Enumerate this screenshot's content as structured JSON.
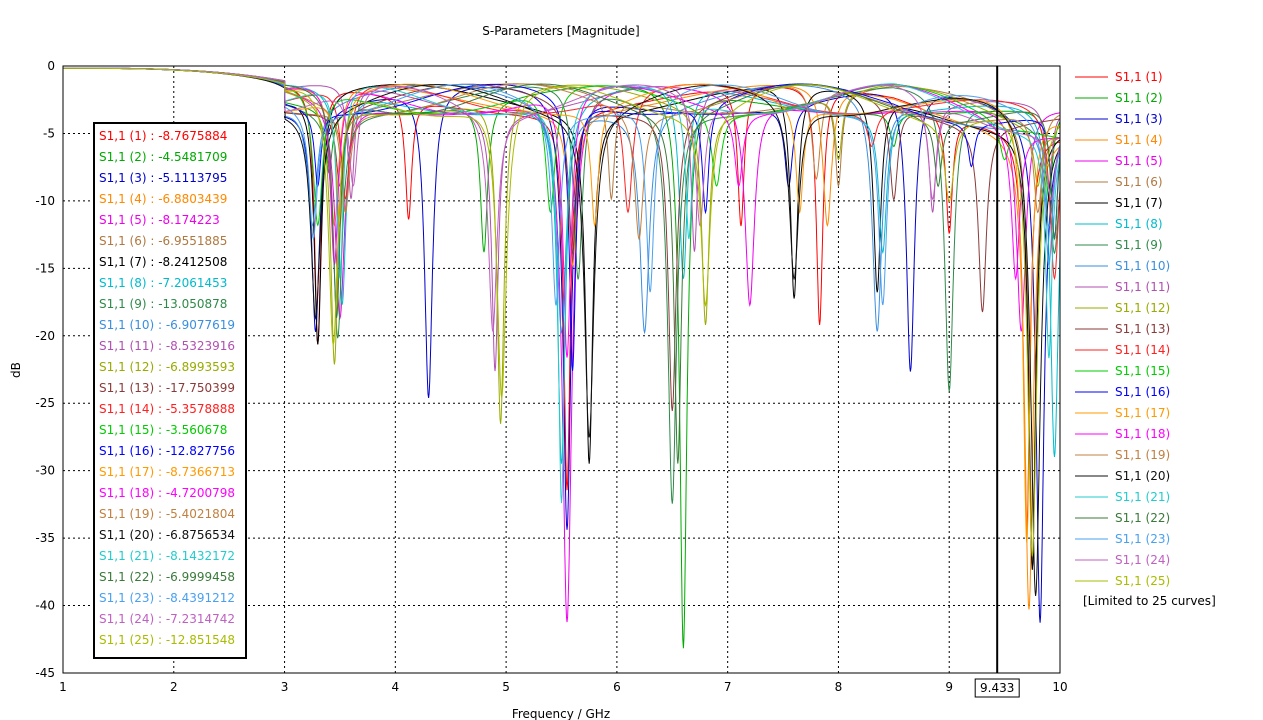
{
  "chart_data": {
    "type": "line",
    "title": "S-Parameters [Magnitude]",
    "xlabel": "Frequency / GHz",
    "ylabel": "dB",
    "xlim": [
      1,
      10
    ],
    "ylim": [
      -45,
      0
    ],
    "x_ticks": [
      "1",
      "2",
      "3",
      "4",
      "5",
      "6",
      "7",
      "8",
      "9",
      "10"
    ],
    "y_ticks": [
      "0",
      "-5",
      "-10",
      "-15",
      "-20",
      "-25",
      "-30",
      "-35",
      "-40",
      "-45"
    ],
    "grid": true,
    "legend_position": "right",
    "legend_note": "[Limited to 25 curves]",
    "marker": {
      "x": 9.433,
      "label": "9.433"
    },
    "series": [
      {
        "name": "S1,1 (1)",
        "readout": "-8.7675884",
        "color": "#ff0000",
        "dips": [
          [
            3.3,
            -21
          ],
          [
            4.12,
            -11.5
          ],
          [
            5.55,
            -32
          ],
          [
            7.12,
            -12
          ],
          [
            7.83,
            -19.5
          ],
          [
            9.0,
            -12.5
          ],
          [
            9.7,
            -35
          ]
        ]
      },
      {
        "name": "S1,1 (2)",
        "readout": "-4.5481709",
        "color": "#00aa00",
        "dips": [
          [
            3.4,
            -8
          ],
          [
            4.8,
            -14
          ],
          [
            6.6,
            -44
          ],
          [
            8.5,
            -6
          ],
          [
            9.9,
            -10
          ]
        ]
      },
      {
        "name": "S1,1 (3)",
        "readout": "-5.1113795",
        "color": "#0000cc",
        "dips": [
          [
            3.28,
            -20
          ],
          [
            4.3,
            -25
          ],
          [
            5.55,
            -35
          ],
          [
            7.55,
            -9
          ],
          [
            8.65,
            -23
          ],
          [
            9.82,
            -42
          ]
        ]
      },
      {
        "name": "S1,1 (4)",
        "readout": "-6.8803439",
        "color": "#ff8800",
        "dips": [
          [
            3.45,
            -12
          ],
          [
            5.6,
            -15
          ],
          [
            7.9,
            -12
          ],
          [
            9.72,
            -41
          ]
        ]
      },
      {
        "name": "S1,1 (5)",
        "readout": "-8.174223",
        "color": "#ee00ee",
        "dips": [
          [
            3.5,
            -19
          ],
          [
            5.55,
            -42
          ],
          [
            7.2,
            -18
          ],
          [
            9.65,
            -20
          ]
        ]
      },
      {
        "name": "S1,1 (6)",
        "readout": "-6.9551885",
        "color": "#b07840",
        "dips": [
          [
            3.55,
            -11
          ],
          [
            5.95,
            -10
          ],
          [
            8.0,
            -9
          ],
          [
            9.75,
            -38
          ]
        ]
      },
      {
        "name": "S1,1 (7)",
        "readout": "-8.2412508",
        "color": "#000000",
        "dips": [
          [
            3.3,
            -21
          ],
          [
            5.75,
            -30
          ],
          [
            7.6,
            -17.5
          ],
          [
            8.35,
            -17
          ],
          [
            9.75,
            -38
          ]
        ]
      },
      {
        "name": "S1,1 (8)",
        "readout": "-7.2061453",
        "color": "#00bbcc",
        "dips": [
          [
            3.52,
            -18
          ],
          [
            5.5,
            -30
          ],
          [
            6.6,
            -16
          ],
          [
            8.4,
            -14
          ],
          [
            9.95,
            -29.5
          ]
        ]
      },
      {
        "name": "S1,1 (9)",
        "readout": "-13.050878",
        "color": "#2f8a4a",
        "dips": [
          [
            3.48,
            -20.5
          ],
          [
            5.65,
            -16
          ],
          [
            6.5,
            -33
          ],
          [
            9.0,
            -24.5
          ],
          [
            9.95,
            -14
          ]
        ]
      },
      {
        "name": "S1,1 (10)",
        "readout": "-6.9077619",
        "color": "#3a8ee0",
        "dips": [
          [
            3.25,
            -12
          ],
          [
            5.5,
            -20
          ],
          [
            6.25,
            -20
          ],
          [
            8.35,
            -20
          ],
          [
            9.9,
            -12
          ]
        ]
      },
      {
        "name": "S1,1 (11)",
        "readout": "-8.5323916",
        "color": "#b050b0",
        "dips": [
          [
            3.6,
            -10
          ],
          [
            4.9,
            -23
          ],
          [
            6.7,
            -14
          ],
          [
            8.85,
            -11
          ],
          [
            9.9,
            -9
          ]
        ]
      },
      {
        "name": "S1,1 (12)",
        "readout": "-6.8993593",
        "color": "#99aa00",
        "dips": [
          [
            3.45,
            -22.5
          ],
          [
            4.95,
            -27
          ],
          [
            6.8,
            -19.5
          ],
          [
            8.0,
            -7
          ],
          [
            9.8,
            -9
          ]
        ]
      },
      {
        "name": "S1,1 (13)",
        "readout": "-17.750399",
        "color": "#8b3a3a",
        "dips": [
          [
            3.5,
            -9
          ],
          [
            5.6,
            -14
          ],
          [
            6.5,
            -26
          ],
          [
            8.5,
            -10
          ],
          [
            9.3,
            -18.5
          ]
        ]
      },
      {
        "name": "S1,1 (14)",
        "readout": "-5.3578888",
        "color": "#ff2020",
        "dips": [
          [
            3.55,
            -10
          ],
          [
            6.1,
            -11
          ],
          [
            8.3,
            -6
          ],
          [
            9.95,
            -16
          ]
        ]
      },
      {
        "name": "S1,1 (15)",
        "readout": "-3.560678",
        "color": "#00cc00",
        "dips": [
          [
            3.3,
            -12
          ],
          [
            5.4,
            -11
          ],
          [
            6.9,
            -9
          ],
          [
            9.5,
            -7
          ]
        ]
      },
      {
        "name": "S1,1 (16)",
        "readout": "-12.827756",
        "color": "#0000ff",
        "dips": [
          [
            3.3,
            -9
          ],
          [
            5.6,
            -23
          ],
          [
            6.8,
            -11
          ],
          [
            9.2,
            -7.5
          ],
          [
            9.95,
            -13
          ]
        ]
      },
      {
        "name": "S1,1 (17)",
        "readout": "-8.7366713",
        "color": "#ff9900",
        "dips": [
          [
            3.5,
            -12
          ],
          [
            5.8,
            -12
          ],
          [
            7.65,
            -11
          ],
          [
            9.7,
            -36
          ]
        ]
      },
      {
        "name": "S1,1 (18)",
        "readout": "-4.7200798",
        "color": "#ff00ff",
        "dips": [
          [
            3.45,
            -15
          ],
          [
            5.55,
            -22
          ],
          [
            7.1,
            -9
          ],
          [
            9.6,
            -16
          ]
        ]
      },
      {
        "name": "S1,1 (19)",
        "readout": "-5.4021804",
        "color": "#c08040",
        "dips": [
          [
            3.55,
            -11
          ],
          [
            6.2,
            -13
          ],
          [
            7.8,
            -8.5
          ],
          [
            9.8,
            -11
          ]
        ]
      },
      {
        "name": "S1,1 (20)",
        "readout": "-6.8756534",
        "color": "#111111",
        "dips": [
          [
            3.28,
            -19
          ],
          [
            5.75,
            -28
          ],
          [
            7.6,
            -16
          ],
          [
            9.78,
            -40
          ]
        ]
      },
      {
        "name": "S1,1 (21)",
        "readout": "-8.1432172",
        "color": "#22cccc",
        "dips": [
          [
            3.5,
            -16
          ],
          [
            5.5,
            -33
          ],
          [
            6.65,
            -13
          ],
          [
            9.9,
            -22
          ]
        ]
      },
      {
        "name": "S1,1 (22)",
        "readout": "-6.9999458",
        "color": "#3a7a3a",
        "dips": [
          [
            3.47,
            -19
          ],
          [
            6.55,
            -30
          ],
          [
            8.9,
            -9
          ],
          [
            9.95,
            -13
          ]
        ]
      },
      {
        "name": "S1,1 (23)",
        "readout": "-8.4391212",
        "color": "#4aa0f0",
        "dips": [
          [
            3.26,
            -13
          ],
          [
            5.45,
            -18
          ],
          [
            6.3,
            -17
          ],
          [
            8.4,
            -18
          ],
          [
            9.9,
            -15
          ]
        ]
      },
      {
        "name": "S1,1 (24)",
        "readout": "-7.2314742",
        "color": "#c060c0",
        "dips": [
          [
            3.62,
            -9
          ],
          [
            4.88,
            -20
          ],
          [
            6.75,
            -12
          ],
          [
            8.85,
            -10
          ],
          [
            9.92,
            -10
          ]
        ]
      },
      {
        "name": "S1,1 (25)",
        "readout": "-12.851548",
        "color": "#aabb00",
        "dips": [
          [
            3.44,
            -21
          ],
          [
            4.96,
            -25
          ],
          [
            6.8,
            -18
          ],
          [
            9.0,
            -10
          ],
          [
            9.75,
            -37
          ]
        ]
      }
    ]
  }
}
